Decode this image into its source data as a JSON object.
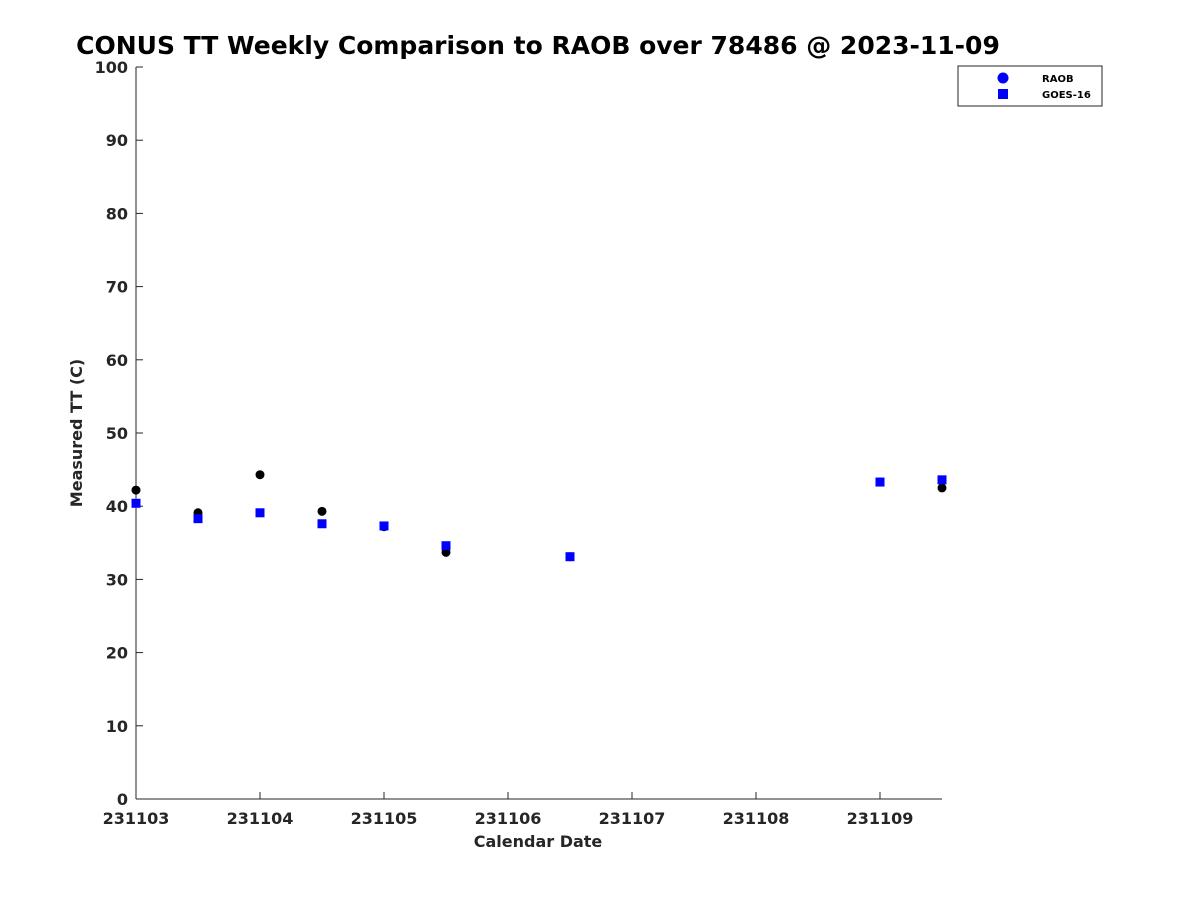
{
  "chart_data": {
    "type": "scatter",
    "title": "CONUS TT Weekly Comparison to RAOB over 78486 @ 2023-11-09",
    "xlabel": "Calendar Date",
    "ylabel": "Measured TT (C)",
    "xlim": [
      231103,
      231109.5
    ],
    "ylim": [
      0,
      100
    ],
    "xticks": [
      231103,
      231104,
      231105,
      231106,
      231107,
      231108,
      231109
    ],
    "xtick_labels": [
      "231103",
      "231104",
      "231105",
      "231106",
      "231107",
      "231108",
      "231109"
    ],
    "yticks": [
      0,
      10,
      20,
      30,
      40,
      50,
      60,
      70,
      80,
      90,
      100
    ],
    "ytick_labels": [
      "0",
      "10",
      "20",
      "30",
      "40",
      "50",
      "60",
      "70",
      "80",
      "90",
      "100"
    ],
    "grid": false,
    "legend_position": "top-right",
    "series": [
      {
        "name": "RAOB",
        "marker": "circle",
        "color": "#000000",
        "legend_color": "#0000ff",
        "x": [
          231103,
          231103.5,
          231104,
          231104.5,
          231105,
          231105.5,
          231106.5,
          231109,
          231109.5
        ],
        "y": [
          42.2,
          39.1,
          44.3,
          39.3,
          37.2,
          33.7,
          33.1,
          43.3,
          42.5
        ]
      },
      {
        "name": "GOES-16",
        "marker": "square",
        "color": "#0000ff",
        "legend_color": "#0000ff",
        "x": [
          231103,
          231103.5,
          231104,
          231104.5,
          231105,
          231105.5,
          231106.5,
          231109,
          231109.5
        ],
        "y": [
          40.4,
          38.3,
          39.1,
          37.6,
          37.3,
          34.6,
          33.1,
          43.3,
          43.6
        ]
      }
    ]
  }
}
